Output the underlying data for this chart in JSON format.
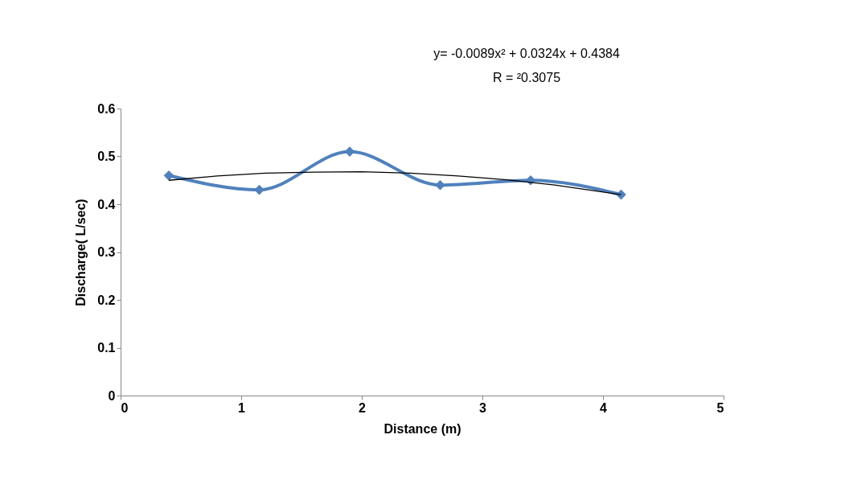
{
  "chart_data": {
    "type": "line",
    "xlabel": "Distance (m)",
    "ylabel": "Discharge( L/sec)",
    "annotations": [
      "y= -0.0089x² + 0.0324x + 0.4384",
      "R = ²0.3075"
    ],
    "series": [
      {
        "color": "#4f81bd",
        "marker": "diamond",
        "x": [
          0.4,
          1.15,
          1.9,
          2.65,
          3.4,
          4.15
        ],
        "values": [
          0.46,
          0.43,
          0.51,
          0.44,
          0.45,
          0.42
        ]
      },
      {
        "color": "#000000",
        "marker": "none",
        "x": [
          0.4,
          0.8,
          1.2,
          1.6,
          2.0,
          2.4,
          2.8,
          3.2,
          3.6,
          4.15
        ],
        "values": [
          0.45,
          0.459,
          0.465,
          0.467,
          0.468,
          0.465,
          0.459,
          0.451,
          0.44,
          0.42
        ]
      }
    ],
    "xlim": [
      0,
      5
    ],
    "xticks": [
      0,
      1,
      2,
      3,
      4,
      5
    ],
    "ylim": [
      0,
      0.6
    ],
    "yticks": [
      0,
      0.1,
      0.2,
      0.3,
      0.4,
      0.5,
      0.6
    ],
    "grid": false,
    "legend": false
  }
}
